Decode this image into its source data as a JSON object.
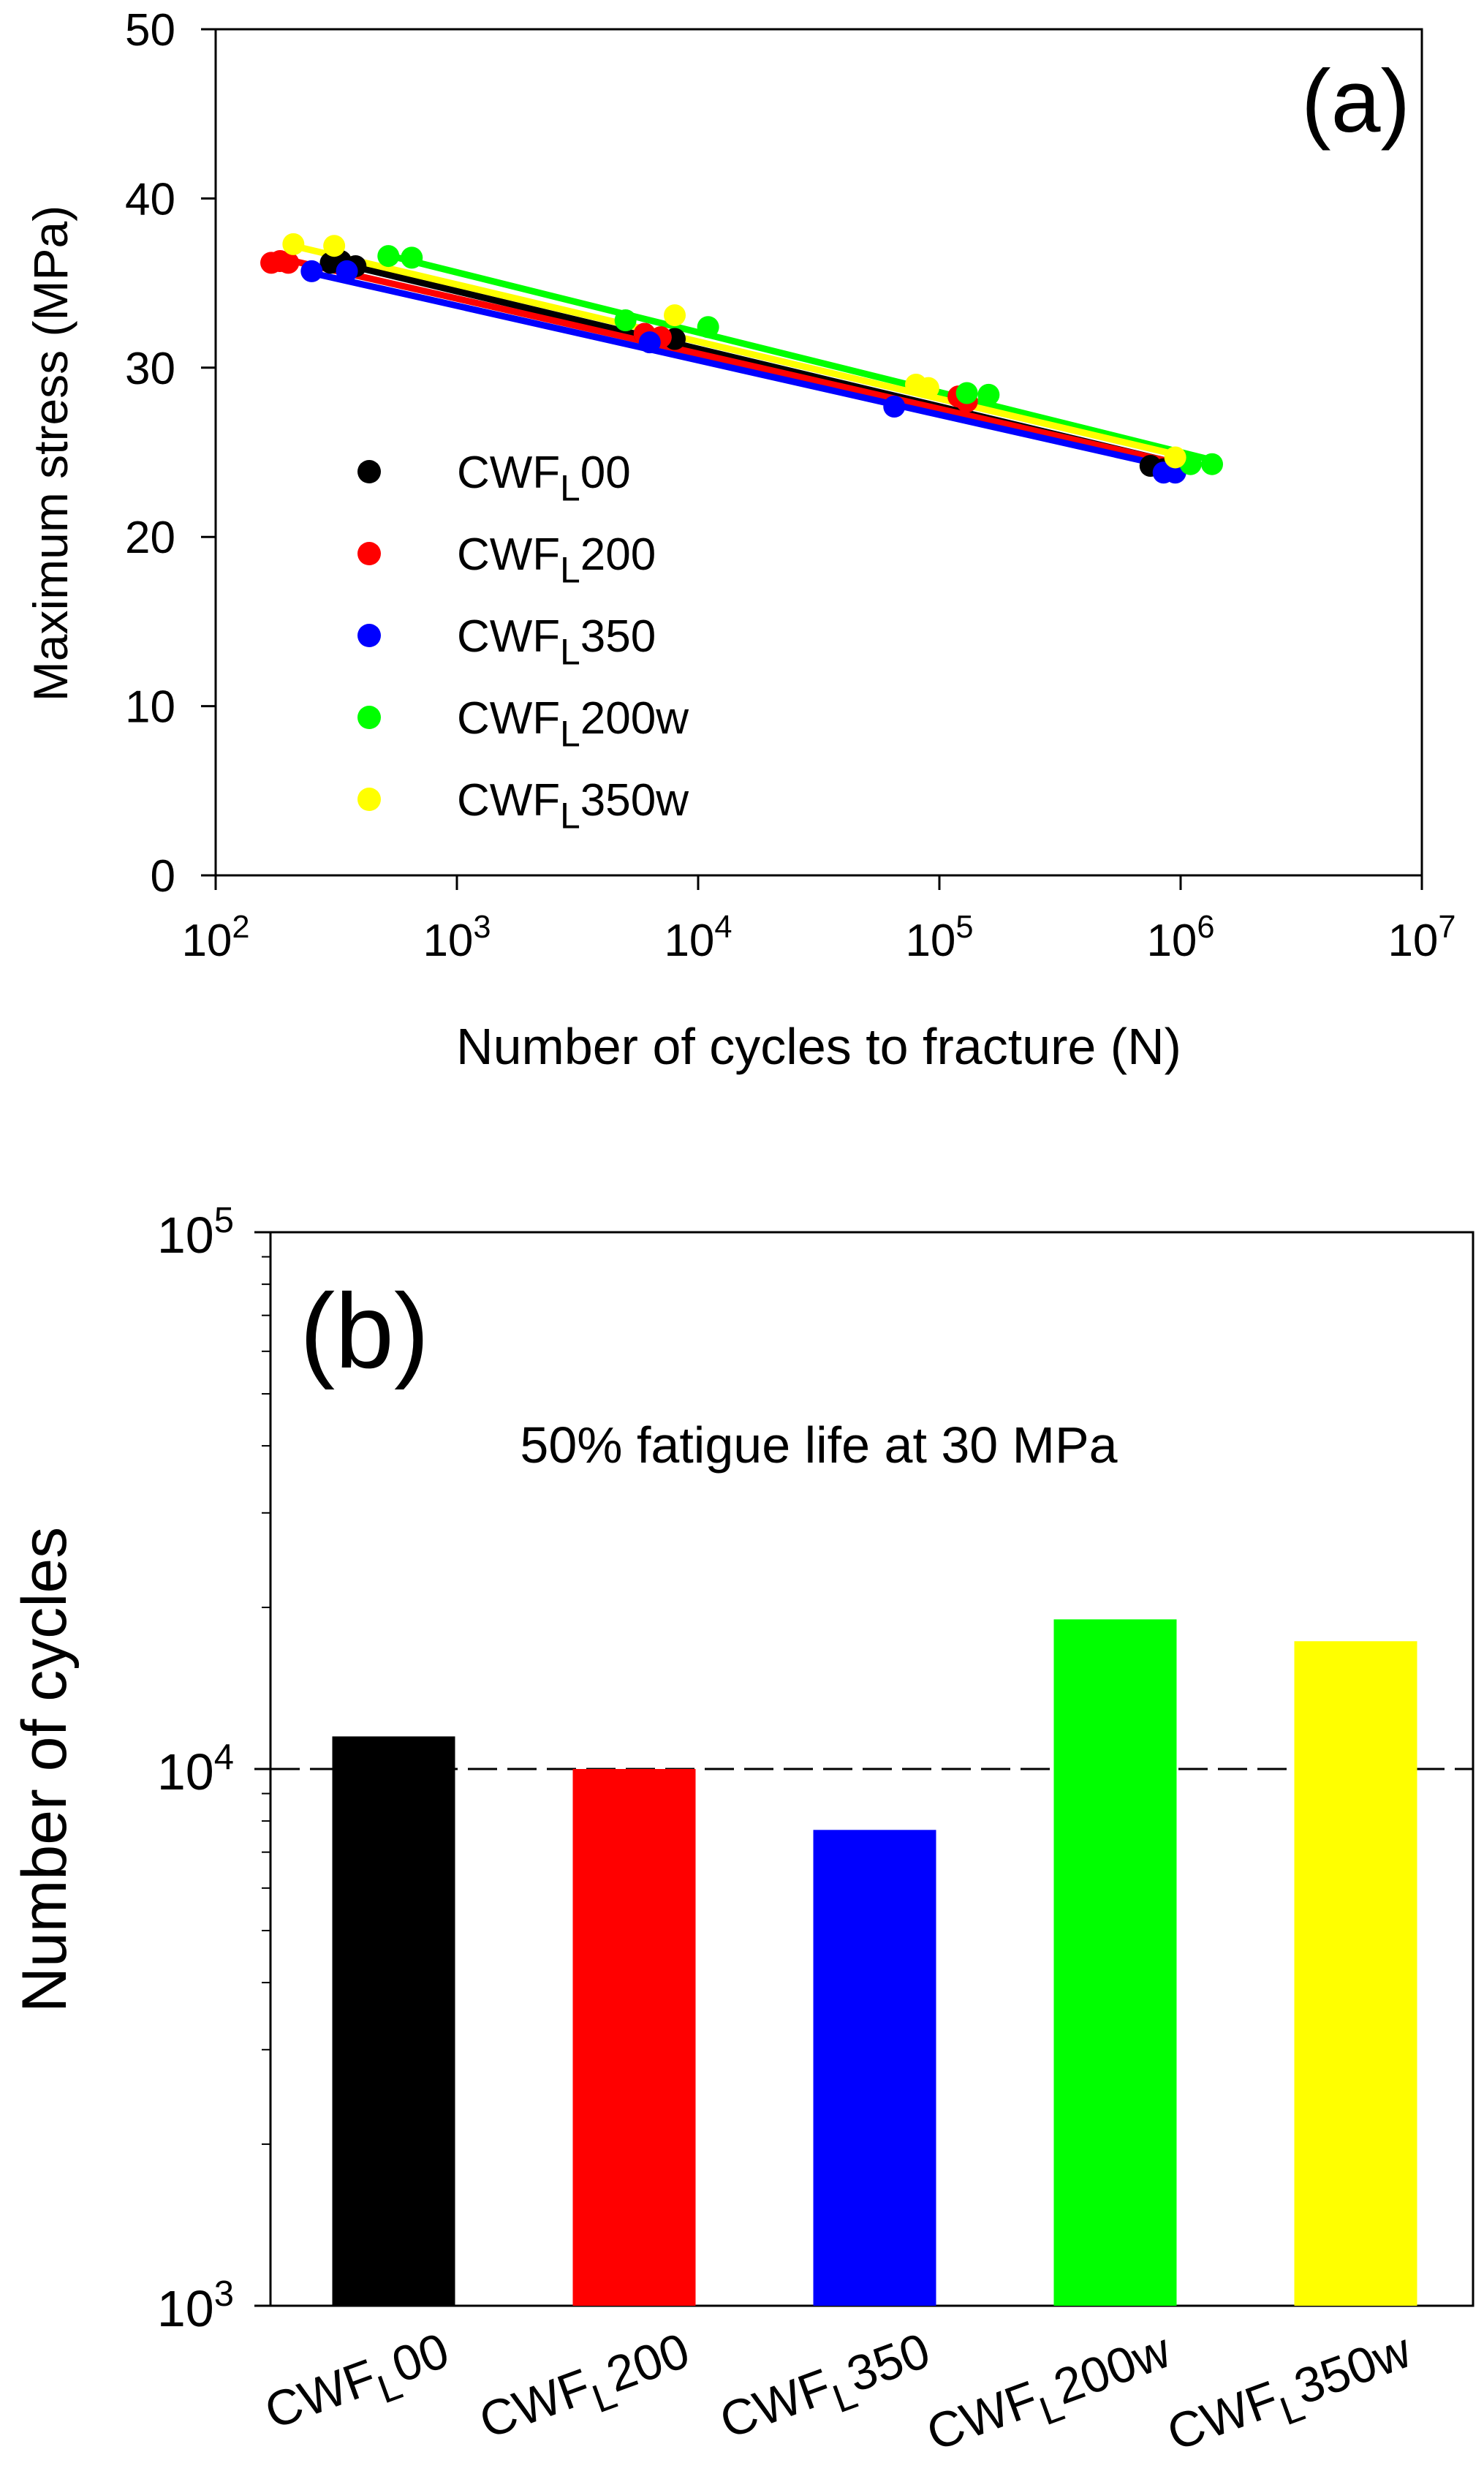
{
  "chart_data": [
    {
      "panel": "(a)",
      "type": "scatter",
      "title": "",
      "xlabel": "Number of cycles to fracture (N)",
      "ylabel": "Maximum stress (MPa)",
      "xscale": "log",
      "xlim": [
        100,
        10000000
      ],
      "ylim": [
        0,
        50
      ],
      "x_ticks": [
        {
          "base": "10",
          "exp": "2",
          "value": 100
        },
        {
          "base": "10",
          "exp": "3",
          "value": 1000
        },
        {
          "base": "10",
          "exp": "4",
          "value": 10000
        },
        {
          "base": "10",
          "exp": "5",
          "value": 100000
        },
        {
          "base": "10",
          "exp": "6",
          "value": 1000000
        },
        {
          "base": "10",
          "exp": "7",
          "value": 10000000
        }
      ],
      "y_ticks": [
        "0",
        "10",
        "20",
        "30",
        "40",
        "50"
      ],
      "legend_position": "center-left",
      "series": [
        {
          "name_main": "CWF",
          "name_sub": "L",
          "name_rest": "00",
          "color": "#000000",
          "points": [
            [
              300,
              36.2
            ],
            [
              330,
              36.3
            ],
            [
              380,
              36.0
            ],
            [
              6000,
              32.0
            ],
            [
              8000,
              31.7
            ],
            [
              750000,
              24.2
            ],
            [
              850000,
              24.0
            ],
            [
              950000,
              24.3
            ]
          ],
          "fit": [
            [
              300,
              36.3
            ],
            [
              1000000,
              24.3
            ]
          ]
        },
        {
          "name_main": "CWF",
          "name_sub": "L",
          "name_rest": "200",
          "color": "#ff0000",
          "points": [
            [
              170,
              36.2
            ],
            [
              185,
              36.3
            ],
            [
              200,
              36.2
            ],
            [
              6000,
              32.0
            ],
            [
              7000,
              31.8
            ],
            [
              120000,
              28.3
            ],
            [
              130000,
              28.0
            ],
            [
              950000,
              24.0
            ]
          ],
          "fit": [
            [
              170,
              36.6
            ],
            [
              1000000,
              24.3
            ]
          ]
        },
        {
          "name_main": "CWF",
          "name_sub": "L",
          "name_rest": "350",
          "color": "#0000ff",
          "points": [
            [
              250,
              35.7
            ],
            [
              350,
              35.7
            ],
            [
              6300,
              31.5
            ],
            [
              65000,
              27.7
            ],
            [
              850000,
              23.8
            ],
            [
              950000,
              23.8
            ]
          ],
          "fit": [
            [
              250,
              35.6
            ],
            [
              1000000,
              24.0
            ]
          ]
        },
        {
          "name_main": "CWF",
          "name_sub": "L",
          "name_rest": "200w",
          "color": "#00ff00",
          "points": [
            [
              520,
              36.6
            ],
            [
              650,
              36.5
            ],
            [
              5000,
              32.8
            ],
            [
              11000,
              32.4
            ],
            [
              130000,
              28.5
            ],
            [
              160000,
              28.4
            ],
            [
              1100000,
              24.3
            ],
            [
              1350000,
              24.3
            ]
          ],
          "fit": [
            [
              500,
              36.7
            ],
            [
              1300000,
              24.6
            ]
          ]
        },
        {
          "name_main": "CWF",
          "name_sub": "L",
          "name_rest": "350w",
          "color": "#ffff00",
          "points": [
            [
              210,
              37.3
            ],
            [
              310,
              37.2
            ],
            [
              8000,
              33.1
            ],
            [
              80000,
              29.0
            ],
            [
              90000,
              28.8
            ],
            [
              950000,
              24.7
            ]
          ],
          "fit": [
            [
              210,
              37.2
            ],
            [
              1000000,
              24.8
            ]
          ]
        }
      ],
      "annotation": "(a)"
    },
    {
      "panel": "(b)",
      "type": "bar",
      "title": "50% fatigue life at 30 MPa",
      "xlabel": "",
      "ylabel": "Number of cycles",
      "yscale": "log",
      "ylim": [
        1000,
        100000
      ],
      "y_ticks": [
        {
          "base": "10",
          "exp": "3",
          "value": 1000
        },
        {
          "base": "10",
          "exp": "4",
          "value": 10000
        },
        {
          "base": "10",
          "exp": "5",
          "value": 100000
        }
      ],
      "reference_line": 10000,
      "categories": [
        {
          "main": "CWF",
          "sub": "L",
          "rest": "00"
        },
        {
          "main": "CWF",
          "sub": "L",
          "rest": "200"
        },
        {
          "main": "CWF",
          "sub": "L",
          "rest": "350"
        },
        {
          "main": "CWF",
          "sub": "L",
          "rest": "200w"
        },
        {
          "main": "CWF",
          "sub": "L",
          "rest": "350w"
        }
      ],
      "values": [
        11500,
        10000,
        7700,
        19000,
        17300
      ],
      "colors": [
        "#000000",
        "#ff0000",
        "#0000ff",
        "#00ff00",
        "#ffff00"
      ],
      "annotation": "(b)"
    }
  ]
}
